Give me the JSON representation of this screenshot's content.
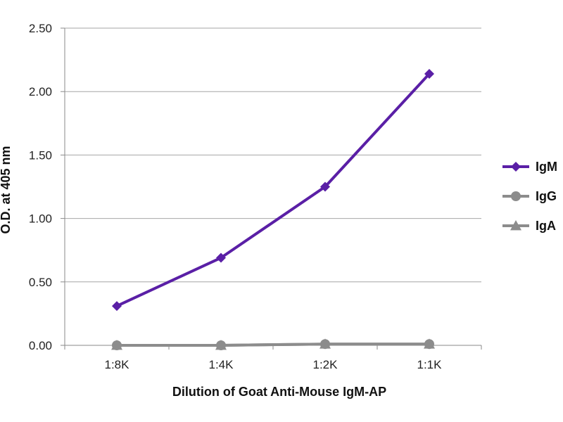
{
  "chart_data": {
    "type": "line",
    "categories": [
      "1:8K",
      "1:4K",
      "1:2K",
      "1:1K"
    ],
    "series": [
      {
        "name": "IgM",
        "values": [
          0.31,
          0.69,
          1.25,
          2.14
        ],
        "color": "#5a1fa6",
        "marker": "diamond"
      },
      {
        "name": "IgG",
        "values": [
          0.0,
          0.0,
          0.01,
          0.01
        ],
        "color": "#8c8c8c",
        "marker": "circle"
      },
      {
        "name": "IgA",
        "values": [
          0.0,
          0.0,
          0.01,
          0.01
        ],
        "color": "#8c8c8c",
        "marker": "triangle"
      }
    ],
    "yticks": [
      "0.00",
      "0.50",
      "1.00",
      "1.50",
      "2.00",
      "2.50"
    ],
    "ylim": [
      0,
      2.5
    ],
    "xlabel": "Dilution of Goat Anti-Mouse IgM-AP",
    "ylabel": "O.D. at 405 nm",
    "grid": true,
    "legend_position": "right"
  }
}
